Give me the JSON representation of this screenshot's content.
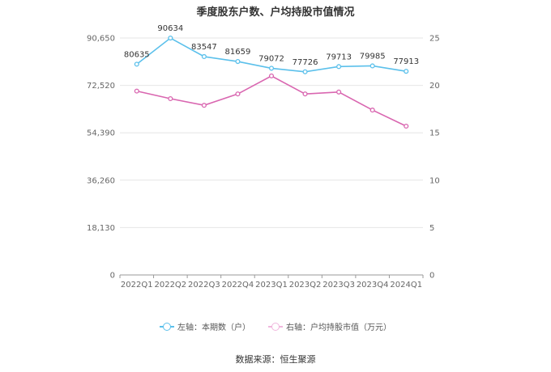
{
  "chart_data": {
    "type": "line",
    "title": "季度股东户数、户均持股市值情况",
    "categories": [
      "2022Q1",
      "2022Q2",
      "2022Q3",
      "2022Q4",
      "2023Q1",
      "2023Q2",
      "2023Q3",
      "2023Q4",
      "2024Q1"
    ],
    "series": [
      {
        "name": "左轴：本期数（户）",
        "axis": "left",
        "color": "#5bc0eb",
        "values": [
          80635,
          90634,
          83547,
          81659,
          79072,
          77726,
          79713,
          79985,
          77913
        ],
        "data_labels": [
          "80635",
          "90634",
          "83547",
          "81659",
          "79072",
          "77726",
          "79713",
          "79985",
          "77913"
        ]
      },
      {
        "name": "右轴：户均持股市值（万元）",
        "axis": "right",
        "color": "#d966b0",
        "values": [
          19.4,
          18.6,
          17.9,
          19.1,
          21.0,
          19.1,
          19.3,
          17.4,
          15.7
        ]
      }
    ],
    "left_axis": {
      "min": 0,
      "max": 90650,
      "ticks": [
        "0",
        "18,130",
        "36,260",
        "54,390",
        "72,520",
        "90,650"
      ]
    },
    "right_axis": {
      "min": 0,
      "max": 25,
      "ticks": [
        "0",
        "5",
        "10",
        "15",
        "20",
        "25"
      ]
    },
    "legend_position": "bottom"
  },
  "source": "数据来源：恒生聚源"
}
